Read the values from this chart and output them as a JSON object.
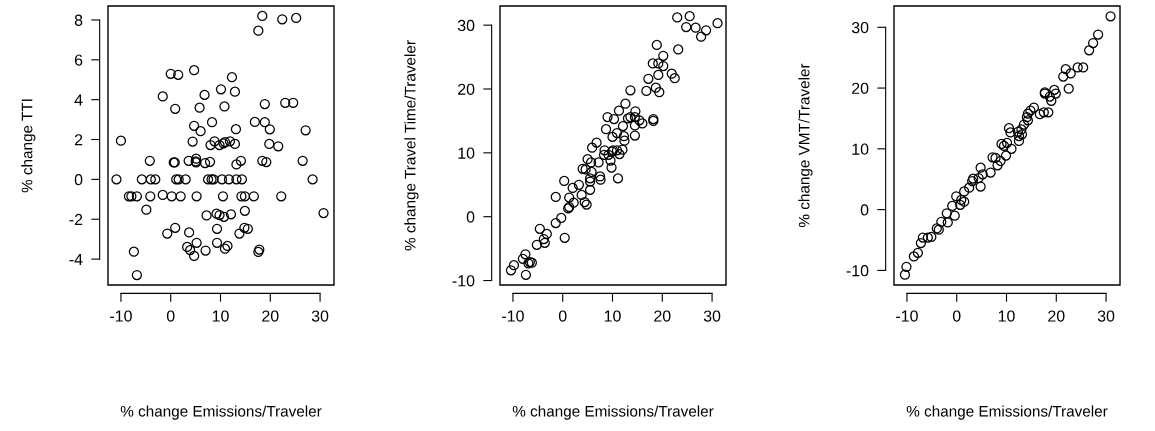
{
  "chart_data": [
    {
      "type": "scatter",
      "xlabel": "% change Emissions/Traveler",
      "ylabel": "% change TTI",
      "xlim": [
        -12.6,
        32.8
      ],
      "ylim": [
        -5.3,
        8.7
      ],
      "xticks": [
        -10,
        0,
        10,
        20,
        30
      ],
      "yticks": [
        -4,
        -2,
        0,
        2,
        4,
        6,
        8
      ],
      "marker": "circle",
      "series": [
        {
          "color": "#000000",
          "x": [
            18.4,
            17.6,
            22.4,
            25.2,
            0,
            1.5,
            4.7,
            12.3,
            -1.6,
            6.8,
            10.1,
            12.9,
            0.9,
            5.8,
            10.8,
            18.9,
            23,
            24.6,
            4.7,
            6.0,
            8.3,
            13.1,
            16.9,
            18.9,
            19.9,
            27.1,
            -10,
            4.4,
            8.0,
            8.8,
            9.8,
            10.6,
            10.9,
            11.9,
            12.9,
            19.8,
            21.6,
            -4.2,
            0.6,
            0.8,
            3.6,
            5.1,
            5.1,
            5.0,
            6.9,
            7.9,
            13.2,
            14.1,
            18.4,
            19.2,
            26.5,
            -10.9,
            -5.8,
            -4.0,
            -3.1,
            1.1,
            1.6,
            3.0,
            7.5,
            8.2,
            8.6,
            10.3,
            11.7,
            13.2,
            14.3,
            28.5,
            -8.4,
            -7.9,
            -6.8,
            -4.1,
            -1.6,
            0.2,
            2.0,
            5.2,
            10.5,
            14.2,
            14.9,
            16.7,
            22.2,
            -4.9,
            7.2,
            9.2,
            9.8,
            10.7,
            12.1,
            14.9,
            30.7,
            -0.7,
            0.9,
            3.7,
            9.3,
            13.8,
            14.8,
            15.5,
            -7.4,
            3.3,
            3.9,
            5.2,
            4.7,
            7.0,
            9.3,
            10.9,
            11.4,
            17.8,
            17.6,
            -6.8
          ],
          "values": [
            8.2,
            7.46,
            8.03,
            8.1,
            5.3,
            5.25,
            5.48,
            5.13,
            4.16,
            4.24,
            4.52,
            4.4,
            3.54,
            3.6,
            3.66,
            3.78,
            3.84,
            3.84,
            2.69,
            2.42,
            2.87,
            2.52,
            2.88,
            2.87,
            2.51,
            2.46,
            1.94,
            1.9,
            1.72,
            1.91,
            1.72,
            1.81,
            1.87,
            1.91,
            1.78,
            1.78,
            1.66,
            0.93,
            0.85,
            0.85,
            0.93,
            1.04,
            0.85,
            0.9,
            0.82,
            0.88,
            0.75,
            0.93,
            0.93,
            0.87,
            0.93,
            0,
            0,
            0,
            0,
            0,
            0,
            0,
            0,
            0,
            0,
            0,
            0,
            0,
            0,
            0,
            -0.85,
            -0.85,
            -0.85,
            -0.85,
            -0.78,
            -0.85,
            -0.85,
            -0.85,
            -0.85,
            -0.85,
            -0.85,
            -0.85,
            -0.85,
            -1.52,
            -1.81,
            -1.72,
            -1.79,
            -1.88,
            -1.75,
            -1.58,
            -1.69,
            -2.72,
            -2.43,
            -2.66,
            -2.48,
            -2.72,
            -2.43,
            -2.48,
            -3.63,
            -3.39,
            -3.55,
            -3.18,
            -3.84,
            -3.57,
            -3.18,
            -3.48,
            -3.34,
            -3.52,
            -3.64,
            -4.8
          ]
        }
      ]
    },
    {
      "type": "scatter",
      "xlabel": "% change Emissions/Traveler",
      "ylabel": "% change Travel Time/Traveler",
      "xlim": [
        -12.6,
        32.8
      ],
      "ylim": [
        -10.7,
        33.0
      ],
      "xticks": [
        -10,
        0,
        10,
        20,
        30
      ],
      "yticks": [
        -10,
        0,
        10,
        20,
        30
      ],
      "marker": "circle",
      "series": [
        {
          "color": "#000000",
          "x": [
            23.0,
            25.5,
            24.8,
            26.7,
            27.8,
            28.8,
            31.1,
            18.9,
            23.2,
            20.2,
            18.1,
            19.2,
            20.2,
            19.2,
            21.9,
            22.5,
            17.2,
            13.6,
            16.8,
            18.7,
            19.4,
            12.6,
            11.3,
            14.6,
            9.0,
            10.3,
            13.1,
            13.6,
            14.5,
            15.4,
            16.0,
            18.2,
            18.2,
            12.1,
            14.5,
            8.7,
            10.9,
            10.0,
            12.3,
            14.5,
            6.8,
            12.4,
            5.9,
            8.4,
            10.1,
            10.9,
            12.0,
            11.4,
            8.3,
            9.2,
            9.9,
            7.2,
            9.6,
            5.0,
            5.7,
            4.0,
            4.6,
            5.8,
            7.5,
            7.6,
            5.5,
            5.5,
            11.1,
            9.8,
            0.3,
            3.25,
            2.0,
            5.5,
            3.8,
            -1.4,
            1.3,
            4.4,
            4.8,
            2.2,
            1.1,
            1.3,
            -0.3,
            -1.4,
            -4.6,
            -3.2,
            0.4,
            -3.8,
            -3.6,
            -5.2,
            -7.5,
            -8.0,
            -6.6,
            -6.2,
            -9.8,
            -10.4,
            -7.4,
            -6.9
          ],
          "values": [
            31.2,
            31.4,
            29.7,
            29.6,
            28.2,
            29.2,
            30.3,
            26.9,
            26.2,
            25.2,
            24.0,
            24.0,
            23.6,
            22.2,
            22.4,
            21.7,
            21.6,
            19.8,
            19.7,
            20.2,
            19.5,
            17.7,
            16.6,
            16.5,
            15.6,
            15.3,
            15.4,
            15.6,
            15.6,
            15.1,
            14.6,
            15.3,
            15.0,
            14.2,
            14.3,
            13.7,
            13.1,
            12.5,
            12.6,
            12.7,
            11.6,
            11.9,
            10.8,
            10.4,
            10.4,
            10.4,
            10.5,
            9.8,
            9.7,
            9.7,
            10.2,
            8.5,
            8.8,
            9.0,
            8.5,
            7.5,
            7.4,
            7.0,
            6.3,
            5.8,
            6.0,
            5.5,
            6.0,
            7.7,
            5.6,
            5.0,
            4.5,
            4.2,
            3.4,
            3.1,
            3.0,
            2.3,
            1.9,
            2.2,
            1.3,
            1.5,
            -0.2,
            -1.0,
            -1.9,
            -2.7,
            -3.3,
            -3.5,
            -4.1,
            -4.4,
            -5.9,
            -6.6,
            -7.1,
            -7.2,
            -7.6,
            -8.4,
            -9.1,
            -7.3
          ]
        }
      ]
    },
    {
      "type": "scatter",
      "xlabel": "% change Emissions/Traveler",
      "ylabel": "% change VMT/Traveler",
      "xlim": [
        -12.6,
        32.8
      ],
      "ylim": [
        -12.4,
        33.5
      ],
      "xticks": [
        -10,
        0,
        10,
        20,
        30
      ],
      "yticks": [
        -10,
        0,
        10,
        20,
        30
      ],
      "marker": "circle",
      "series": [
        {
          "color": "#000000",
          "x": [
            30.9,
            28.4,
            27.4,
            26.6,
            25.4,
            24.3,
            21.9,
            22.9,
            21.4,
            22.5,
            19.6,
            17.7,
            17.7,
            19.9,
            18.7,
            19.0,
            18.4,
            17.5,
            16.7,
            15.5,
            14.8,
            14.3,
            14.1,
            14.3,
            13.5,
            13.0,
            12.3,
            13.1,
            12.5,
            10.5,
            10.8,
            12.5,
            10.1,
            9.0,
            9.5,
            11.0,
            9.9,
            8.8,
            7.2,
            7.8,
            8.2,
            6.8,
            4.8,
            5.2,
            4.4,
            3.3,
            3.1,
            4.8,
            2.5,
            1.5,
            0.9,
            1.5,
            -0.1,
            0.7,
            -0.9,
            -2.0,
            -0.4,
            -1.8,
            -3.1,
            -4.0,
            -3.6,
            -5.1,
            -5.8,
            -6.8,
            -7.2,
            -7.8,
            -8.6,
            -10.1,
            -10.4
          ],
          "values": [
            31.8,
            28.8,
            27.4,
            26.2,
            23.4,
            23.4,
            23.1,
            22.4,
            21.9,
            19.9,
            19.7,
            19.3,
            19.1,
            19.1,
            18.6,
            17.9,
            16.0,
            16.0,
            15.7,
            16.8,
            16.3,
            15.8,
            15.2,
            14.7,
            14.0,
            13.2,
            12.8,
            12.4,
            12.1,
            13.4,
            12.7,
            11.3,
            11.0,
            10.8,
            10.5,
            10.0,
            8.9,
            8.0,
            8.6,
            8.5,
            7.3,
            6.1,
            6.9,
            5.8,
            5.2,
            5.1,
            4.7,
            3.8,
            3.6,
            3.0,
            1.6,
            1.3,
            2.2,
            0.8,
            0.6,
            -0.6,
            -1.0,
            -2.1,
            -2.0,
            -3.1,
            -3.3,
            -4.5,
            -4.6,
            -4.6,
            -5.5,
            -7.1,
            -7.7,
            -9.4,
            -10.7
          ]
        }
      ]
    }
  ]
}
